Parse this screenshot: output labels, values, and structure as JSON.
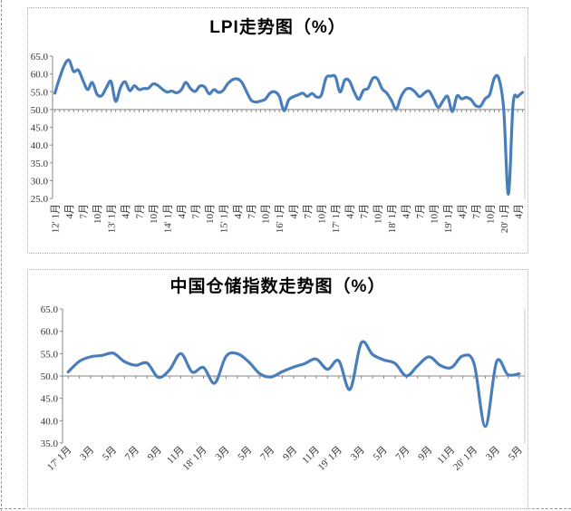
{
  "page": {
    "background": "#ffffff"
  },
  "chart_data": [
    {
      "type": "line",
      "title": "LPI走势图（%）",
      "series_name": "LPI",
      "ylim": [
        25,
        65
      ],
      "y_tick_step": 5,
      "y_tick_labels": [
        "65.0",
        "60.0",
        "55.0",
        "50.0",
        "45.0",
        "40.0",
        "35.0",
        "30.0",
        "25.0"
      ],
      "baseline_value": 50,
      "x_tick_interval_months": 3,
      "x_label_rotation": -90,
      "grid": "off",
      "legend": "none",
      "line_color": "#4a7ebb",
      "axis_color": "#878787",
      "x_tick_labels": [
        "12' 1月",
        "4月",
        "7月",
        "10月",
        "13' 1月",
        "4月",
        "7月",
        "10月",
        "14' 1月",
        "4月",
        "7月",
        "10月",
        "15' 1月",
        "4月",
        "7月",
        "10月",
        "16' 1月",
        "4月",
        "7月",
        "10月",
        "17' 1月",
        "4月",
        "7月",
        "10月",
        "18' 1月",
        "4月",
        "7月",
        "10月",
        "19' 1月",
        "4月",
        "7月",
        "10月",
        "20' 1月",
        "4月"
      ],
      "values": [
        54.6,
        58.8,
        62.4,
        63.9,
        60.7,
        61.1,
        58.2,
        55.6,
        57.6,
        54.3,
        53.9,
        56.1,
        57.9,
        52.3,
        56.1,
        57.8,
        55.3,
        56.7,
        55.6,
        55.9,
        56.0,
        57.2,
        56.8,
        55.7,
        54.9,
        55.2,
        54.7,
        55.5,
        57.6,
        55.9,
        55.1,
        56.6,
        56.4,
        54.4,
        55.6,
        54.8,
        55.4,
        57.3,
        58.4,
        58.6,
        57.6,
        55.0,
        52.6,
        52.1,
        52.4,
        52.9,
        54.6,
        55.0,
        53.7,
        49.7,
        52.7,
        53.6,
        54.1,
        54.6,
        53.7,
        54.5,
        53.5,
        54.1,
        58.9,
        59.4,
        59.2,
        54.9,
        58.3,
        58.0,
        55.0,
        52.9,
        55.4,
        56.0,
        58.8,
        58.6,
        55.8,
        54.6,
        52.5,
        50.1,
        53.5,
        55.6,
        55.9,
        55.0,
        53.6,
        54.6,
        55.2,
        53.0,
        50.6,
        52.4,
        53.7,
        49.4,
        53.8,
        53.0,
        53.4,
        52.8,
        51.1,
        50.9,
        53.0,
        54.2,
        58.9,
        58.6,
        49.9,
        26.2,
        51.5,
        53.6,
        54.8
      ]
    },
    {
      "type": "line",
      "title": "中国仓储指数走势图（%）",
      "series_name": "中国仓储指数",
      "ylim": [
        35,
        65
      ],
      "y_tick_step": 5,
      "y_tick_labels": [
        "65.0",
        "60.0",
        "55.0",
        "50.0",
        "45.0",
        "40.0",
        "35.0"
      ],
      "baseline_value": 50,
      "x_tick_interval_months": 2,
      "x_label_rotation": -45,
      "grid": "off",
      "legend": "none",
      "line_color": "#4a7ebb",
      "axis_color": "#878787",
      "x_tick_labels": [
        "17' 1月",
        "3月",
        "5月",
        "7月",
        "9月",
        "11月",
        "18' 1月",
        "3月",
        "5月",
        "7月",
        "9月",
        "11月",
        "19' 1月",
        "3月",
        "5月",
        "7月",
        "9月",
        "11月",
        "20' 1月",
        "3月",
        "5月"
      ],
      "values": [
        50.9,
        53.3,
        54.3,
        54.6,
        55.1,
        53.2,
        52.4,
        52.9,
        49.7,
        51.4,
        55.0,
        50.9,
        51.9,
        48.4,
        54.4,
        55.0,
        53.2,
        50.5,
        49.8,
        51.0,
        52.0,
        52.8,
        53.8,
        51.5,
        53.4,
        47.0,
        57.4,
        54.8,
        53.6,
        52.8,
        50.0,
        52.3,
        54.3,
        52.4,
        51.9,
        54.5,
        52.8,
        38.7,
        53.2,
        50.3,
        50.5
      ]
    }
  ]
}
